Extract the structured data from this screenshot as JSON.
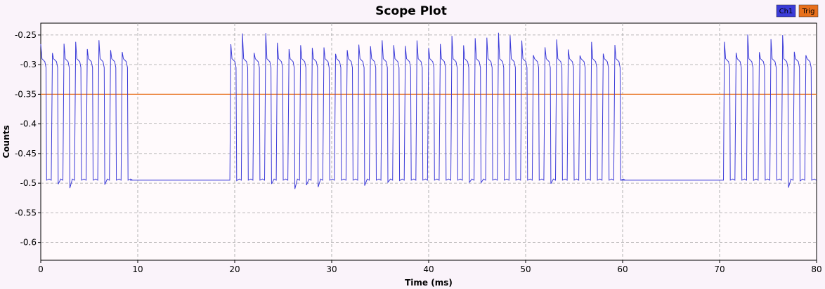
{
  "chart_data": {
    "type": "line",
    "title": "Scope Plot",
    "xlabel": "Time (ms)",
    "ylabel": "Counts",
    "xlim": [
      0,
      80
    ],
    "ylim": [
      -0.63,
      -0.23
    ],
    "grid": true,
    "legend_position": "top-right",
    "x_ticks": [
      "0",
      "10",
      "20",
      "30",
      "40",
      "50",
      "60",
      "70",
      "80"
    ],
    "y_ticks": [
      "-0.25",
      "-0.3",
      "-0.35",
      "-0.4",
      "-0.45",
      "-0.5",
      "-0.55",
      "-0.6"
    ],
    "colors": {
      "Ch1": "#3b3bd8",
      "Trig": "#e8701c",
      "plot_bg": "#fffafc",
      "grid": "#a0a0a0"
    },
    "series": [
      {
        "name": "Ch1",
        "high": -0.295,
        "low": -0.495,
        "idle_level": -0.495,
        "burst_intervals_ms": [
          [
            0,
            9.2
          ],
          [
            19.6,
            59.8
          ],
          [
            70.5,
            80
          ]
        ],
        "idle_intervals_ms": [
          [
            9.2,
            19.6
          ],
          [
            59.8,
            70.5
          ]
        ],
        "pulse_period_ms": 1.2
      },
      {
        "name": "Trig",
        "level": -0.35
      }
    ]
  }
}
